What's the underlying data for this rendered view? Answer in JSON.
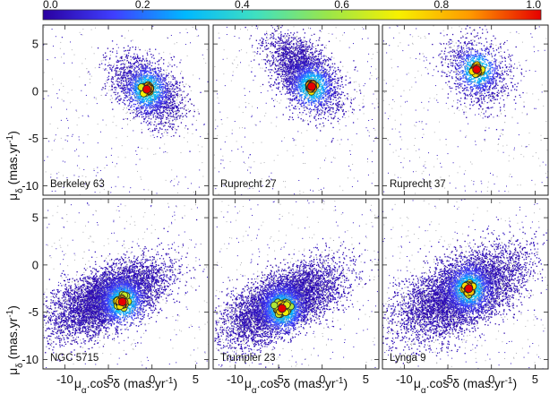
{
  "chart_data": {
    "type": "scatter",
    "colorbar": {
      "min": 0.0,
      "max": 1.0,
      "ticks": [
        "0.0",
        "0.2",
        "0.4",
        "0.6",
        "0.8",
        "1.0"
      ],
      "colormap": [
        "#2a00a0",
        "#3f3fff",
        "#00b8ff",
        "#40e0c0",
        "#9ae64a",
        "#f7f000",
        "#ff9a00",
        "#e60000"
      ]
    },
    "xlim": [
      -12.5,
      6.5
    ],
    "ylim": [
      -11,
      7
    ],
    "xticks": [
      "-10",
      "-5",
      "0",
      "5"
    ],
    "yticks": [
      "5",
      "0",
      "-5",
      "-10"
    ],
    "xlabel": {
      "main": "μ",
      "sub": "α",
      "rest": ".cos δ (mas.yr",
      "sup": "-1",
      "close": ")"
    },
    "ylabel": {
      "main": "μ",
      "sub": "δ",
      "rest": " (mas.yr",
      "sup": "-1",
      "close": ")"
    },
    "panels": [
      {
        "name": "Berkeley 63",
        "field_center": [
          -0.5,
          0.2
        ],
        "field_spread": [
          2.0,
          1.7
        ],
        "corr": -0.45,
        "n_field": 2600,
        "cluster_center": [
          -0.6,
          0.2
        ],
        "cluster_spread": 0.25,
        "n_members": 40
      },
      {
        "name": "Ruprecht 27",
        "field_center": [
          -2.0,
          1.8
        ],
        "field_spread": [
          2.0,
          2.0
        ],
        "corr": -0.5,
        "n_field": 3200,
        "cluster_center": [
          -1.2,
          0.5
        ],
        "cluster_spread": 0.22,
        "n_members": 30
      },
      {
        "name": "Ruprecht 37",
        "field_center": [
          -1.6,
          2.0
        ],
        "field_spread": [
          1.8,
          1.8
        ],
        "corr": -0.3,
        "n_field": 1500,
        "cluster_center": [
          -1.7,
          2.3
        ],
        "cluster_spread": 0.25,
        "n_members": 25
      },
      {
        "name": "NGC 5715",
        "field_center": [
          -5.0,
          -3.5
        ],
        "field_spread": [
          3.2,
          1.9
        ],
        "corr": 0.55,
        "n_field": 6500,
        "cluster_center": [
          -3.4,
          -3.9
        ],
        "cluster_spread": 0.3,
        "n_members": 45
      },
      {
        "name": "Trumpler 23",
        "field_center": [
          -4.5,
          -4.0
        ],
        "field_spread": [
          3.2,
          2.0
        ],
        "corr": 0.6,
        "n_field": 6500,
        "cluster_center": [
          -4.6,
          -4.6
        ],
        "cluster_spread": 0.35,
        "n_members": 50
      },
      {
        "name": "Lynga 9",
        "field_center": [
          -3.5,
          -3.0
        ],
        "field_spread": [
          3.5,
          2.3
        ],
        "corr": 0.55,
        "n_field": 6500,
        "cluster_center": [
          -2.6,
          -2.5
        ],
        "cluster_spread": 0.25,
        "n_members": 40
      }
    ]
  }
}
